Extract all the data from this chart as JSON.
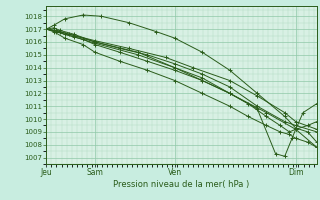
{
  "title": "Pression niveau de la mer( hPa )",
  "background_color": "#c8ede0",
  "plot_bg_color": "#d8f0e4",
  "grid_color_major": "#90c8a8",
  "grid_color_minor": "#b0d8c0",
  "line_color": "#2a5c1a",
  "ylim": [
    1006.5,
    1018.8
  ],
  "yticks": [
    1007,
    1008,
    1009,
    1010,
    1011,
    1012,
    1013,
    1014,
    1015,
    1016,
    1017,
    1018
  ],
  "xtick_labels": [
    "Jeu",
    "Sam",
    "Ven",
    "Dim"
  ],
  "xtick_positions": [
    0,
    53,
    140,
    272
  ],
  "xlim": [
    0,
    295
  ],
  "series": [
    [
      [
        0,
        1017.0
      ],
      [
        8,
        1017.1
      ],
      [
        15,
        1016.9
      ],
      [
        30,
        1016.6
      ],
      [
        53,
        1016.0
      ],
      [
        100,
        1015.2
      ],
      [
        140,
        1014.0
      ],
      [
        200,
        1012.0
      ],
      [
        240,
        1010.5
      ],
      [
        272,
        1009.2
      ],
      [
        295,
        1007.8
      ]
    ],
    [
      [
        0,
        1017.0
      ],
      [
        8,
        1017.3
      ],
      [
        20,
        1017.8
      ],
      [
        40,
        1018.1
      ],
      [
        60,
        1018.0
      ],
      [
        90,
        1017.5
      ],
      [
        120,
        1016.8
      ],
      [
        140,
        1016.3
      ],
      [
        170,
        1015.2
      ],
      [
        200,
        1013.8
      ],
      [
        230,
        1012.0
      ],
      [
        260,
        1010.2
      ],
      [
        272,
        1009.3
      ],
      [
        285,
        1009.0
      ],
      [
        295,
        1008.2
      ]
    ],
    [
      [
        0,
        1017.0
      ],
      [
        15,
        1016.8
      ],
      [
        30,
        1016.5
      ],
      [
        53,
        1016.0
      ],
      [
        80,
        1015.5
      ],
      [
        110,
        1015.0
      ],
      [
        140,
        1014.3
      ],
      [
        170,
        1013.5
      ],
      [
        200,
        1012.5
      ],
      [
        230,
        1011.0
      ],
      [
        260,
        1009.8
      ],
      [
        272,
        1009.5
      ],
      [
        295,
        1009.0
      ]
    ],
    [
      [
        0,
        1017.0
      ],
      [
        10,
        1016.9
      ],
      [
        25,
        1016.6
      ],
      [
        53,
        1016.1
      ],
      [
        90,
        1015.5
      ],
      [
        130,
        1014.8
      ],
      [
        160,
        1014.0
      ],
      [
        200,
        1013.0
      ],
      [
        230,
        1011.8
      ],
      [
        260,
        1010.5
      ],
      [
        272,
        1009.8
      ],
      [
        295,
        1009.2
      ]
    ],
    [
      [
        0,
        1017.0
      ],
      [
        8,
        1016.9
      ],
      [
        20,
        1016.6
      ],
      [
        40,
        1016.2
      ],
      [
        53,
        1015.8
      ],
      [
        80,
        1015.2
      ],
      [
        110,
        1014.5
      ],
      [
        140,
        1013.8
      ],
      [
        170,
        1013.0
      ],
      [
        200,
        1012.0
      ],
      [
        230,
        1010.8
      ],
      [
        250,
        1007.3
      ],
      [
        260,
        1007.1
      ],
      [
        268,
        1008.5
      ],
      [
        272,
        1009.2
      ],
      [
        280,
        1010.5
      ],
      [
        295,
        1011.2
      ]
    ],
    [
      [
        0,
        1017.0
      ],
      [
        10,
        1016.8
      ],
      [
        30,
        1016.4
      ],
      [
        53,
        1015.9
      ],
      [
        100,
        1015.0
      ],
      [
        140,
        1014.0
      ],
      [
        170,
        1013.2
      ],
      [
        200,
        1012.0
      ],
      [
        220,
        1011.2
      ],
      [
        240,
        1010.2
      ],
      [
        255,
        1009.5
      ],
      [
        265,
        1009.0
      ],
      [
        272,
        1009.2
      ],
      [
        285,
        1009.5
      ],
      [
        295,
        1009.8
      ]
    ],
    [
      [
        0,
        1017.0
      ],
      [
        8,
        1016.8
      ],
      [
        20,
        1016.3
      ],
      [
        40,
        1015.8
      ],
      [
        53,
        1015.2
      ],
      [
        80,
        1014.5
      ],
      [
        110,
        1013.8
      ],
      [
        140,
        1013.0
      ],
      [
        170,
        1012.0
      ],
      [
        200,
        1011.0
      ],
      [
        220,
        1010.2
      ],
      [
        240,
        1009.5
      ],
      [
        255,
        1009.0
      ],
      [
        265,
        1008.8
      ],
      [
        272,
        1008.5
      ],
      [
        285,
        1008.2
      ],
      [
        295,
        1007.8
      ]
    ]
  ]
}
